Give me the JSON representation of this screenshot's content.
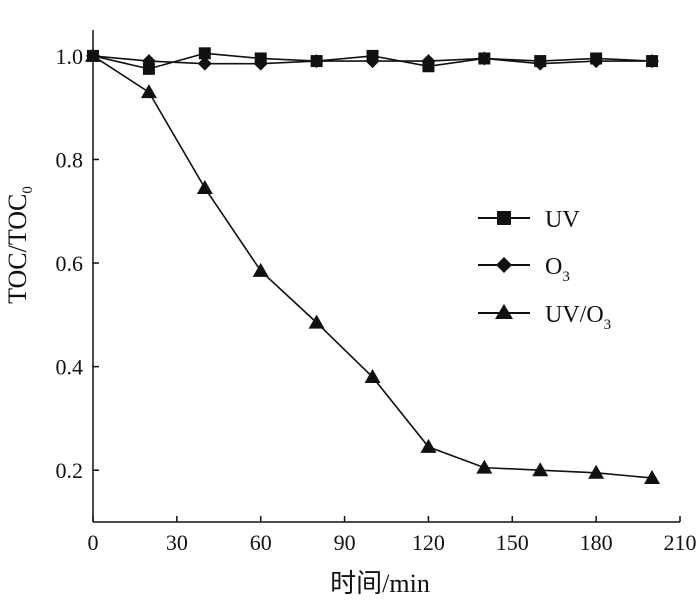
{
  "chart_data": {
    "type": "line",
    "title": "",
    "xlabel": "时间/min",
    "ylabel": {
      "main": "TOC/TOC",
      "subscript": "0"
    },
    "xlim": [
      0,
      210
    ],
    "ylim": [
      0.1,
      1.05
    ],
    "xticks": [
      "0",
      "30",
      "60",
      "90",
      "120",
      "150",
      "180",
      "210"
    ],
    "yticks": [
      "0.2",
      "0.4",
      "0.6",
      "0.8",
      "1.0"
    ],
    "grid": false,
    "legend_position": "right-middle",
    "series": [
      {
        "name": "UV",
        "marker": "square",
        "color": "#111111",
        "x": [
          0,
          20,
          40,
          60,
          80,
          100,
          120,
          140,
          160,
          180,
          200
        ],
        "y": [
          1.0,
          0.975,
          1.005,
          0.995,
          0.99,
          1.0,
          0.98,
          0.995,
          0.99,
          0.995,
          0.99
        ]
      },
      {
        "name": {
          "main": "O",
          "subscript": "3"
        },
        "marker": "diamond",
        "color": "#111111",
        "x": [
          0,
          20,
          40,
          60,
          80,
          100,
          120,
          140,
          160,
          180,
          200
        ],
        "y": [
          1.0,
          0.99,
          0.985,
          0.985,
          0.99,
          0.99,
          0.99,
          0.995,
          0.985,
          0.99,
          0.99
        ]
      },
      {
        "name": {
          "main": "UV/O",
          "subscript": "3"
        },
        "marker": "triangle",
        "color": "#111111",
        "x": [
          0,
          20,
          40,
          60,
          80,
          100,
          120,
          140,
          160,
          180,
          200
        ],
        "y": [
          1.0,
          0.93,
          0.745,
          0.585,
          0.485,
          0.38,
          0.245,
          0.205,
          0.2,
          0.195,
          0.185
        ]
      }
    ]
  }
}
